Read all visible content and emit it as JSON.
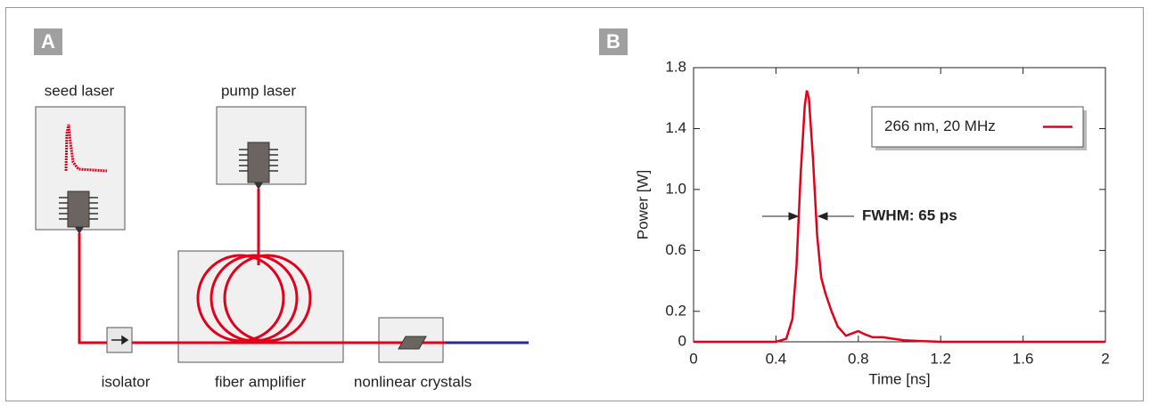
{
  "panel_a": {
    "label": "A",
    "seed_laser": "seed laser",
    "pump_laser": "pump laser",
    "isolator": "isolator",
    "fiber_amplifier": "fiber amplifier",
    "nonlinear_crystals": "nonlinear crystals"
  },
  "chart_data": {
    "type": "line",
    "panel_label": "B",
    "x_label": "Time [ns]",
    "y_label": "Power [W]",
    "xlim": [
      0,
      2
    ],
    "xticks": [
      0,
      0.4,
      0.8,
      1.2,
      1.6,
      2
    ],
    "ylim": [
      0,
      1.8
    ],
    "yticks": [
      0,
      0.2,
      0.6,
      {
        "value": 1,
        "label": "1.0"
      },
      1.4,
      1.8
    ],
    "annotation": "FWHM: 65 ps",
    "legend": "upper right",
    "series": [
      {
        "name": "266 nm, 20 MHz",
        "color": "#e2001a",
        "x": [
          0,
          0.4,
          0.45,
          0.48,
          0.5,
          0.52,
          0.54,
          0.55,
          0.56,
          0.58,
          0.6,
          0.62,
          0.64,
          0.67,
          0.7,
          0.74,
          0.78,
          0.8,
          0.83,
          0.87,
          0.92,
          0.97,
          1.02,
          1.1,
          1.2,
          1.5,
          2
        ],
        "values": [
          0,
          0,
          0.02,
          0.15,
          0.5,
          1.1,
          1.55,
          1.65,
          1.6,
          1.2,
          0.7,
          0.42,
          0.32,
          0.2,
          0.1,
          0.04,
          0.06,
          0.07,
          0.05,
          0.03,
          0.03,
          0.02,
          0.01,
          0.005,
          0,
          0,
          0
        ]
      }
    ]
  }
}
